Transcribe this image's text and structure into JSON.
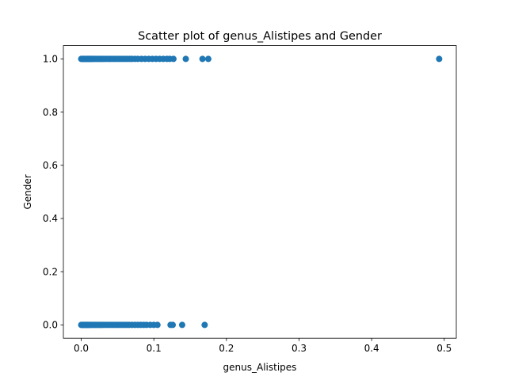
{
  "chart_data": {
    "type": "scatter",
    "title": "Scatter plot of genus_Alistipes and Gender",
    "xlabel": "genus_Alistipes",
    "ylabel": "Gender",
    "xlim": [
      -0.0246,
      0.5166
    ],
    "ylim": [
      -0.05,
      1.05
    ],
    "xticks": [
      "0.0",
      "0.1",
      "0.2",
      "0.3",
      "0.4",
      "0.5"
    ],
    "xtick_values": [
      0.0,
      0.1,
      0.2,
      0.3,
      0.4,
      0.5
    ],
    "yticks": [
      "0.0",
      "0.2",
      "0.4",
      "0.6",
      "0.8",
      "1.0"
    ],
    "ytick_values": [
      0.0,
      0.2,
      0.4,
      0.6,
      0.8,
      1.0
    ],
    "grid": false,
    "marker_color": "#1f77b4",
    "series": [
      {
        "points": [
          [
            0.0,
            1
          ],
          [
            0.001,
            1
          ],
          [
            0.002,
            1
          ],
          [
            0.003,
            1
          ],
          [
            0.004,
            1
          ],
          [
            0.005,
            1
          ],
          [
            0.006,
            1
          ],
          [
            0.007,
            1
          ],
          [
            0.008,
            1
          ],
          [
            0.009,
            1
          ],
          [
            0.01,
            1
          ],
          [
            0.011,
            1
          ],
          [
            0.012,
            1
          ],
          [
            0.013,
            1
          ],
          [
            0.014,
            1
          ],
          [
            0.015,
            1
          ],
          [
            0.016,
            1
          ],
          [
            0.018,
            1
          ],
          [
            0.02,
            1
          ],
          [
            0.022,
            1
          ],
          [
            0.024,
            1
          ],
          [
            0.026,
            1
          ],
          [
            0.028,
            1
          ],
          [
            0.03,
            1
          ],
          [
            0.032,
            1
          ],
          [
            0.035,
            1
          ],
          [
            0.038,
            1
          ],
          [
            0.04,
            1
          ],
          [
            0.043,
            1
          ],
          [
            0.046,
            1
          ],
          [
            0.049,
            1
          ],
          [
            0.052,
            1
          ],
          [
            0.055,
            1
          ],
          [
            0.058,
            1
          ],
          [
            0.061,
            1
          ],
          [
            0.064,
            1
          ],
          [
            0.067,
            1
          ],
          [
            0.07,
            1
          ],
          [
            0.074,
            1
          ],
          [
            0.078,
            1
          ],
          [
            0.083,
            1
          ],
          [
            0.088,
            1
          ],
          [
            0.093,
            1
          ],
          [
            0.098,
            1
          ],
          [
            0.103,
            1
          ],
          [
            0.108,
            1
          ],
          [
            0.113,
            1
          ],
          [
            0.118,
            1
          ],
          [
            0.122,
            1
          ],
          [
            0.127,
            1
          ],
          [
            0.144,
            1
          ],
          [
            0.167,
            1
          ],
          [
            0.175,
            1
          ],
          [
            0.493,
            1
          ],
          [
            0.0,
            0
          ],
          [
            0.001,
            0
          ],
          [
            0.002,
            0
          ],
          [
            0.003,
            0
          ],
          [
            0.004,
            0
          ],
          [
            0.005,
            0
          ],
          [
            0.006,
            0
          ],
          [
            0.007,
            0
          ],
          [
            0.008,
            0
          ],
          [
            0.009,
            0
          ],
          [
            0.01,
            0
          ],
          [
            0.011,
            0
          ],
          [
            0.012,
            0
          ],
          [
            0.014,
            0
          ],
          [
            0.016,
            0
          ],
          [
            0.018,
            0
          ],
          [
            0.02,
            0
          ],
          [
            0.022,
            0
          ],
          [
            0.024,
            0
          ],
          [
            0.026,
            0
          ],
          [
            0.028,
            0
          ],
          [
            0.03,
            0
          ],
          [
            0.033,
            0
          ],
          [
            0.036,
            0
          ],
          [
            0.039,
            0
          ],
          [
            0.042,
            0
          ],
          [
            0.045,
            0
          ],
          [
            0.048,
            0
          ],
          [
            0.051,
            0
          ],
          [
            0.054,
            0
          ],
          [
            0.057,
            0
          ],
          [
            0.06,
            0
          ],
          [
            0.063,
            0
          ],
          [
            0.066,
            0
          ],
          [
            0.07,
            0
          ],
          [
            0.074,
            0
          ],
          [
            0.078,
            0
          ],
          [
            0.082,
            0
          ],
          [
            0.086,
            0
          ],
          [
            0.09,
            0
          ],
          [
            0.095,
            0
          ],
          [
            0.1,
            0
          ],
          [
            0.105,
            0
          ],
          [
            0.123,
            0
          ],
          [
            0.126,
            0
          ],
          [
            0.139,
            0
          ],
          [
            0.17,
            0
          ]
        ]
      }
    ]
  }
}
